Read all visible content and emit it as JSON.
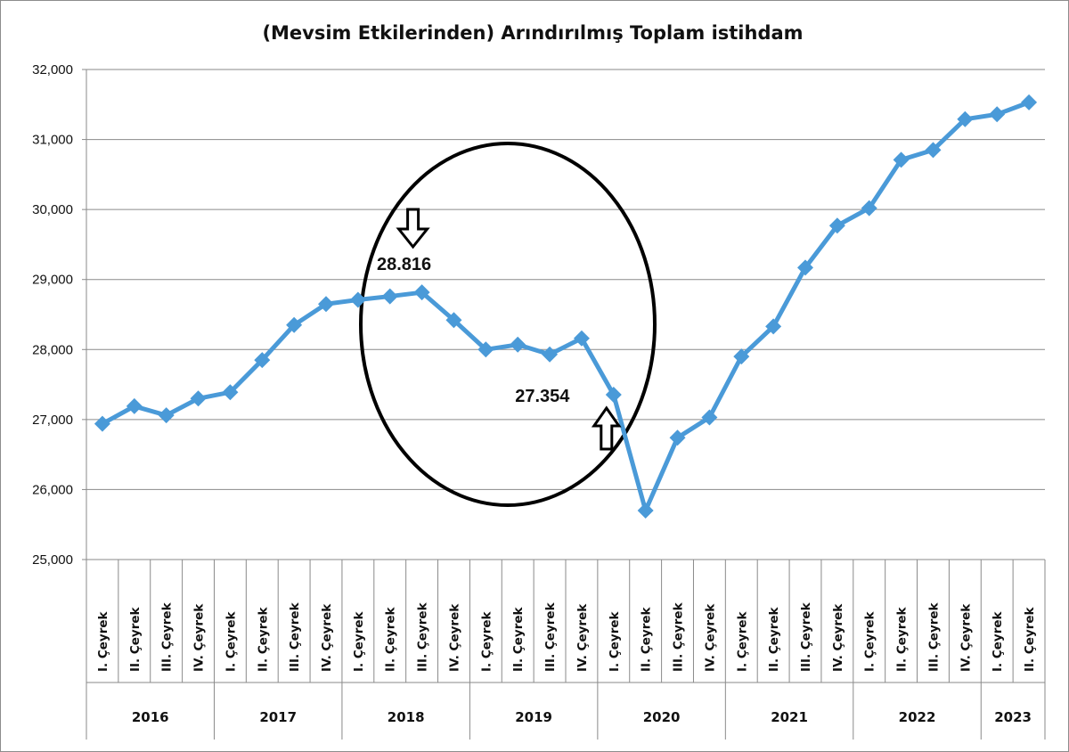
{
  "chart_data": {
    "type": "line",
    "title": "(Mevsim Etkilerinden) Arındırılmış Toplam istihdam",
    "xlabel": "",
    "ylabel": "",
    "ylim": [
      25000,
      32000
    ],
    "yticks": [
      25000,
      26000,
      27000,
      28000,
      29000,
      30000,
      31000,
      32000
    ],
    "ytick_labels": [
      "25,000",
      "26,000",
      "27,000",
      "28,000",
      "29,000",
      "30,000",
      "31,000",
      "32,000"
    ],
    "grid": true,
    "legend": "none",
    "color": "#4a9ad8",
    "categories": [
      "I. Çeyrek",
      "II. Çeyrek",
      "III. Çeyrek",
      "IV. Çeyrek",
      "I. Çeyrek",
      "II. Çeyrek",
      "III. Çeyrek",
      "IV. Çeyrek",
      "I. Çeyrek",
      "II. Çeyrek",
      "III. Çeyrek",
      "IV. Çeyrek",
      "I. Çeyrek",
      "II. Çeyrek",
      "III. Çeyrek",
      "IV. Çeyrek",
      "I. Çeyrek",
      "II. Çeyrek",
      "III. Çeyrek",
      "IV. Çeyrek",
      "I. Çeyrek",
      "II. Çeyrek",
      "III. Çeyrek",
      "IV. Çeyrek",
      "I. Çeyrek",
      "II. Çeyrek",
      "III. Çeyrek",
      "IV. Çeyrek",
      "I. Çeyrek",
      "II. Çeyrek"
    ],
    "year_groups": [
      {
        "year": "2016",
        "count": 4
      },
      {
        "year": "2017",
        "count": 4
      },
      {
        "year": "2018",
        "count": 4
      },
      {
        "year": "2019",
        "count": 4
      },
      {
        "year": "2020",
        "count": 4
      },
      {
        "year": "2021",
        "count": 4
      },
      {
        "year": "2022",
        "count": 4
      },
      {
        "year": "2023",
        "count": 2
      }
    ],
    "series": [
      {
        "values": [
          26940,
          27190,
          27060,
          27300,
          27390,
          27850,
          28350,
          28650,
          28710,
          28760,
          28816,
          28420,
          28000,
          28070,
          27930,
          28160,
          27354,
          25700,
          26740,
          27030,
          27900,
          28330,
          29170,
          29770,
          30020,
          30710,
          30850,
          31290,
          31360,
          31530
        ]
      }
    ],
    "annotations": [
      {
        "text": "28.816",
        "index": 10,
        "arrow": "down"
      },
      {
        "text": "27.354",
        "index": 16,
        "arrow": "up"
      }
    ]
  }
}
